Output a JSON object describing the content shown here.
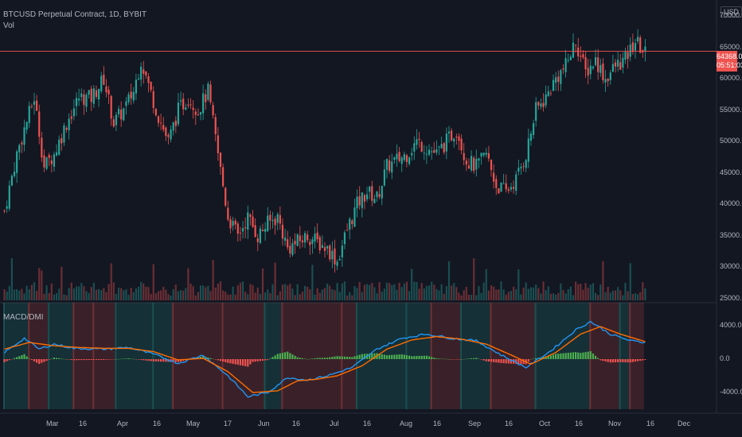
{
  "header": {
    "symbol": "BTCUSD Perpetual Contract, 1D, BYBIT",
    "volume_label": "Vol",
    "currency": "USD"
  },
  "indicator": {
    "name": "MACD/DMI"
  },
  "price_tag": {
    "price": "64368.0",
    "countdown": "05:51:03"
  },
  "price_scale": [
    "70000.0",
    "65000.0",
    "60000.0",
    "55000.0",
    "50000.0",
    "45000.0",
    "40000.0",
    "35000.0",
    "30000.0",
    "25000.0"
  ],
  "indicator_scale": [
    "4000.0",
    "0.0",
    "-4000.0"
  ],
  "time_axis": [
    "Mar",
    "16",
    "Apr",
    "16",
    "May",
    "17",
    "Jun",
    "16",
    "Jul",
    "16",
    "Aug",
    "16",
    "Sep",
    "16",
    "Oct",
    "16",
    "Nov",
    "16",
    "Dec"
  ],
  "colors": {
    "up": "#26a69a",
    "down": "#ef5350",
    "macd": "#2196f3",
    "signal": "#ff6d00",
    "bg": "#131722"
  },
  "chart_data": {
    "type": "candlestick",
    "symbol": "BTCUSD",
    "interval": "1D",
    "ylim": [
      25000,
      70000
    ],
    "close_key_points": [
      [
        0,
        39000
      ],
      [
        5,
        48000
      ],
      [
        8,
        52000
      ],
      [
        12,
        57000
      ],
      [
        16,
        46000
      ],
      [
        20,
        48000
      ],
      [
        25,
        53000
      ],
      [
        30,
        57000
      ],
      [
        35,
        57000
      ],
      [
        40,
        60000
      ],
      [
        44,
        53000
      ],
      [
        48,
        55000
      ],
      [
        52,
        58000
      ],
      [
        55,
        63000
      ],
      [
        58,
        59000
      ],
      [
        62,
        54000
      ],
      [
        66,
        50000
      ],
      [
        70,
        55000
      ],
      [
        74,
        57000
      ],
      [
        78,
        55000
      ],
      [
        82,
        58000
      ],
      [
        86,
        48000
      ],
      [
        90,
        38000
      ],
      [
        94,
        35000
      ],
      [
        98,
        38000
      ],
      [
        102,
        35000
      ],
      [
        106,
        37000
      ],
      [
        110,
        38000
      ],
      [
        114,
        33000
      ],
      [
        118,
        34000
      ],
      [
        122,
        35000
      ],
      [
        126,
        34000
      ],
      [
        130,
        33000
      ],
      [
        134,
        31000
      ],
      [
        138,
        36000
      ],
      [
        142,
        40000
      ],
      [
        146,
        42000
      ],
      [
        150,
        41000
      ],
      [
        154,
        46000
      ],
      [
        158,
        47000
      ],
      [
        162,
        48000
      ],
      [
        166,
        50000
      ],
      [
        170,
        49000
      ],
      [
        174,
        48000
      ],
      [
        178,
        50000
      ],
      [
        182,
        52000
      ],
      [
        186,
        47000
      ],
      [
        190,
        46000
      ],
      [
        194,
        48000
      ],
      [
        198,
        43000
      ],
      [
        202,
        42000
      ],
      [
        206,
        44000
      ],
      [
        210,
        48000
      ],
      [
        214,
        55000
      ],
      [
        218,
        57000
      ],
      [
        222,
        60000
      ],
      [
        226,
        62000
      ],
      [
        230,
        66000
      ],
      [
        234,
        61000
      ],
      [
        238,
        63000
      ],
      [
        242,
        60000
      ],
      [
        246,
        62000
      ],
      [
        250,
        63000
      ],
      [
        254,
        66000
      ],
      [
        258,
        64000
      ]
    ],
    "macd_key_points": [
      [
        0,
        800
      ],
      [
        8,
        2500
      ],
      [
        14,
        1200
      ],
      [
        20,
        1800
      ],
      [
        28,
        1300
      ],
      [
        40,
        1200
      ],
      [
        50,
        1400
      ],
      [
        60,
        600
      ],
      [
        70,
        -500
      ],
      [
        80,
        500
      ],
      [
        90,
        -2000
      ],
      [
        98,
        -4500
      ],
      [
        106,
        -4000
      ],
      [
        114,
        -2200
      ],
      [
        122,
        -2500
      ],
      [
        130,
        -2000
      ],
      [
        140,
        -1000
      ],
      [
        150,
        1200
      ],
      [
        160,
        2500
      ],
      [
        170,
        3000
      ],
      [
        180,
        2500
      ],
      [
        190,
        2200
      ],
      [
        200,
        500
      ],
      [
        210,
        -1000
      ],
      [
        220,
        1000
      ],
      [
        230,
        3500
      ],
      [
        236,
        4500
      ],
      [
        244,
        3000
      ],
      [
        252,
        2200
      ],
      [
        258,
        2000
      ]
    ],
    "signal_key_points": [
      [
        0,
        1200
      ],
      [
        10,
        2000
      ],
      [
        20,
        1600
      ],
      [
        30,
        1400
      ],
      [
        40,
        1300
      ],
      [
        50,
        1300
      ],
      [
        60,
        900
      ],
      [
        70,
        -100
      ],
      [
        80,
        100
      ],
      [
        90,
        -1500
      ],
      [
        100,
        -4000
      ],
      [
        110,
        -3800
      ],
      [
        118,
        -2600
      ],
      [
        126,
        -2400
      ],
      [
        134,
        -2000
      ],
      [
        144,
        -800
      ],
      [
        154,
        1200
      ],
      [
        164,
        2300
      ],
      [
        174,
        2700
      ],
      [
        184,
        2400
      ],
      [
        194,
        1800
      ],
      [
        204,
        500
      ],
      [
        212,
        -600
      ],
      [
        222,
        800
      ],
      [
        232,
        3000
      ],
      [
        240,
        3900
      ],
      [
        248,
        3000
      ],
      [
        258,
        2100
      ]
    ],
    "dmi_regimes": [
      [
        "bull",
        0,
        10
      ],
      [
        "bear",
        10,
        18
      ],
      [
        "bull",
        18,
        28
      ],
      [
        "bear",
        28,
        36
      ],
      [
        "bear",
        36,
        45
      ],
      [
        "bull",
        45,
        60
      ],
      [
        "bull",
        60,
        68
      ],
      [
        "bear",
        68,
        88
      ],
      [
        "bear",
        88,
        105
      ],
      [
        "bull",
        105,
        112
      ],
      [
        "bear",
        112,
        136
      ],
      [
        "bear",
        136,
        142
      ],
      [
        "bull",
        142,
        162
      ],
      [
        "bull",
        162,
        172
      ],
      [
        "bear",
        172,
        184
      ],
      [
        "bull",
        184,
        196
      ],
      [
        "bear",
        196,
        214
      ],
      [
        "bull",
        214,
        236
      ],
      [
        "bear",
        236,
        248
      ],
      [
        "bull",
        248,
        252
      ],
      [
        "bear",
        252,
        258
      ]
    ]
  }
}
